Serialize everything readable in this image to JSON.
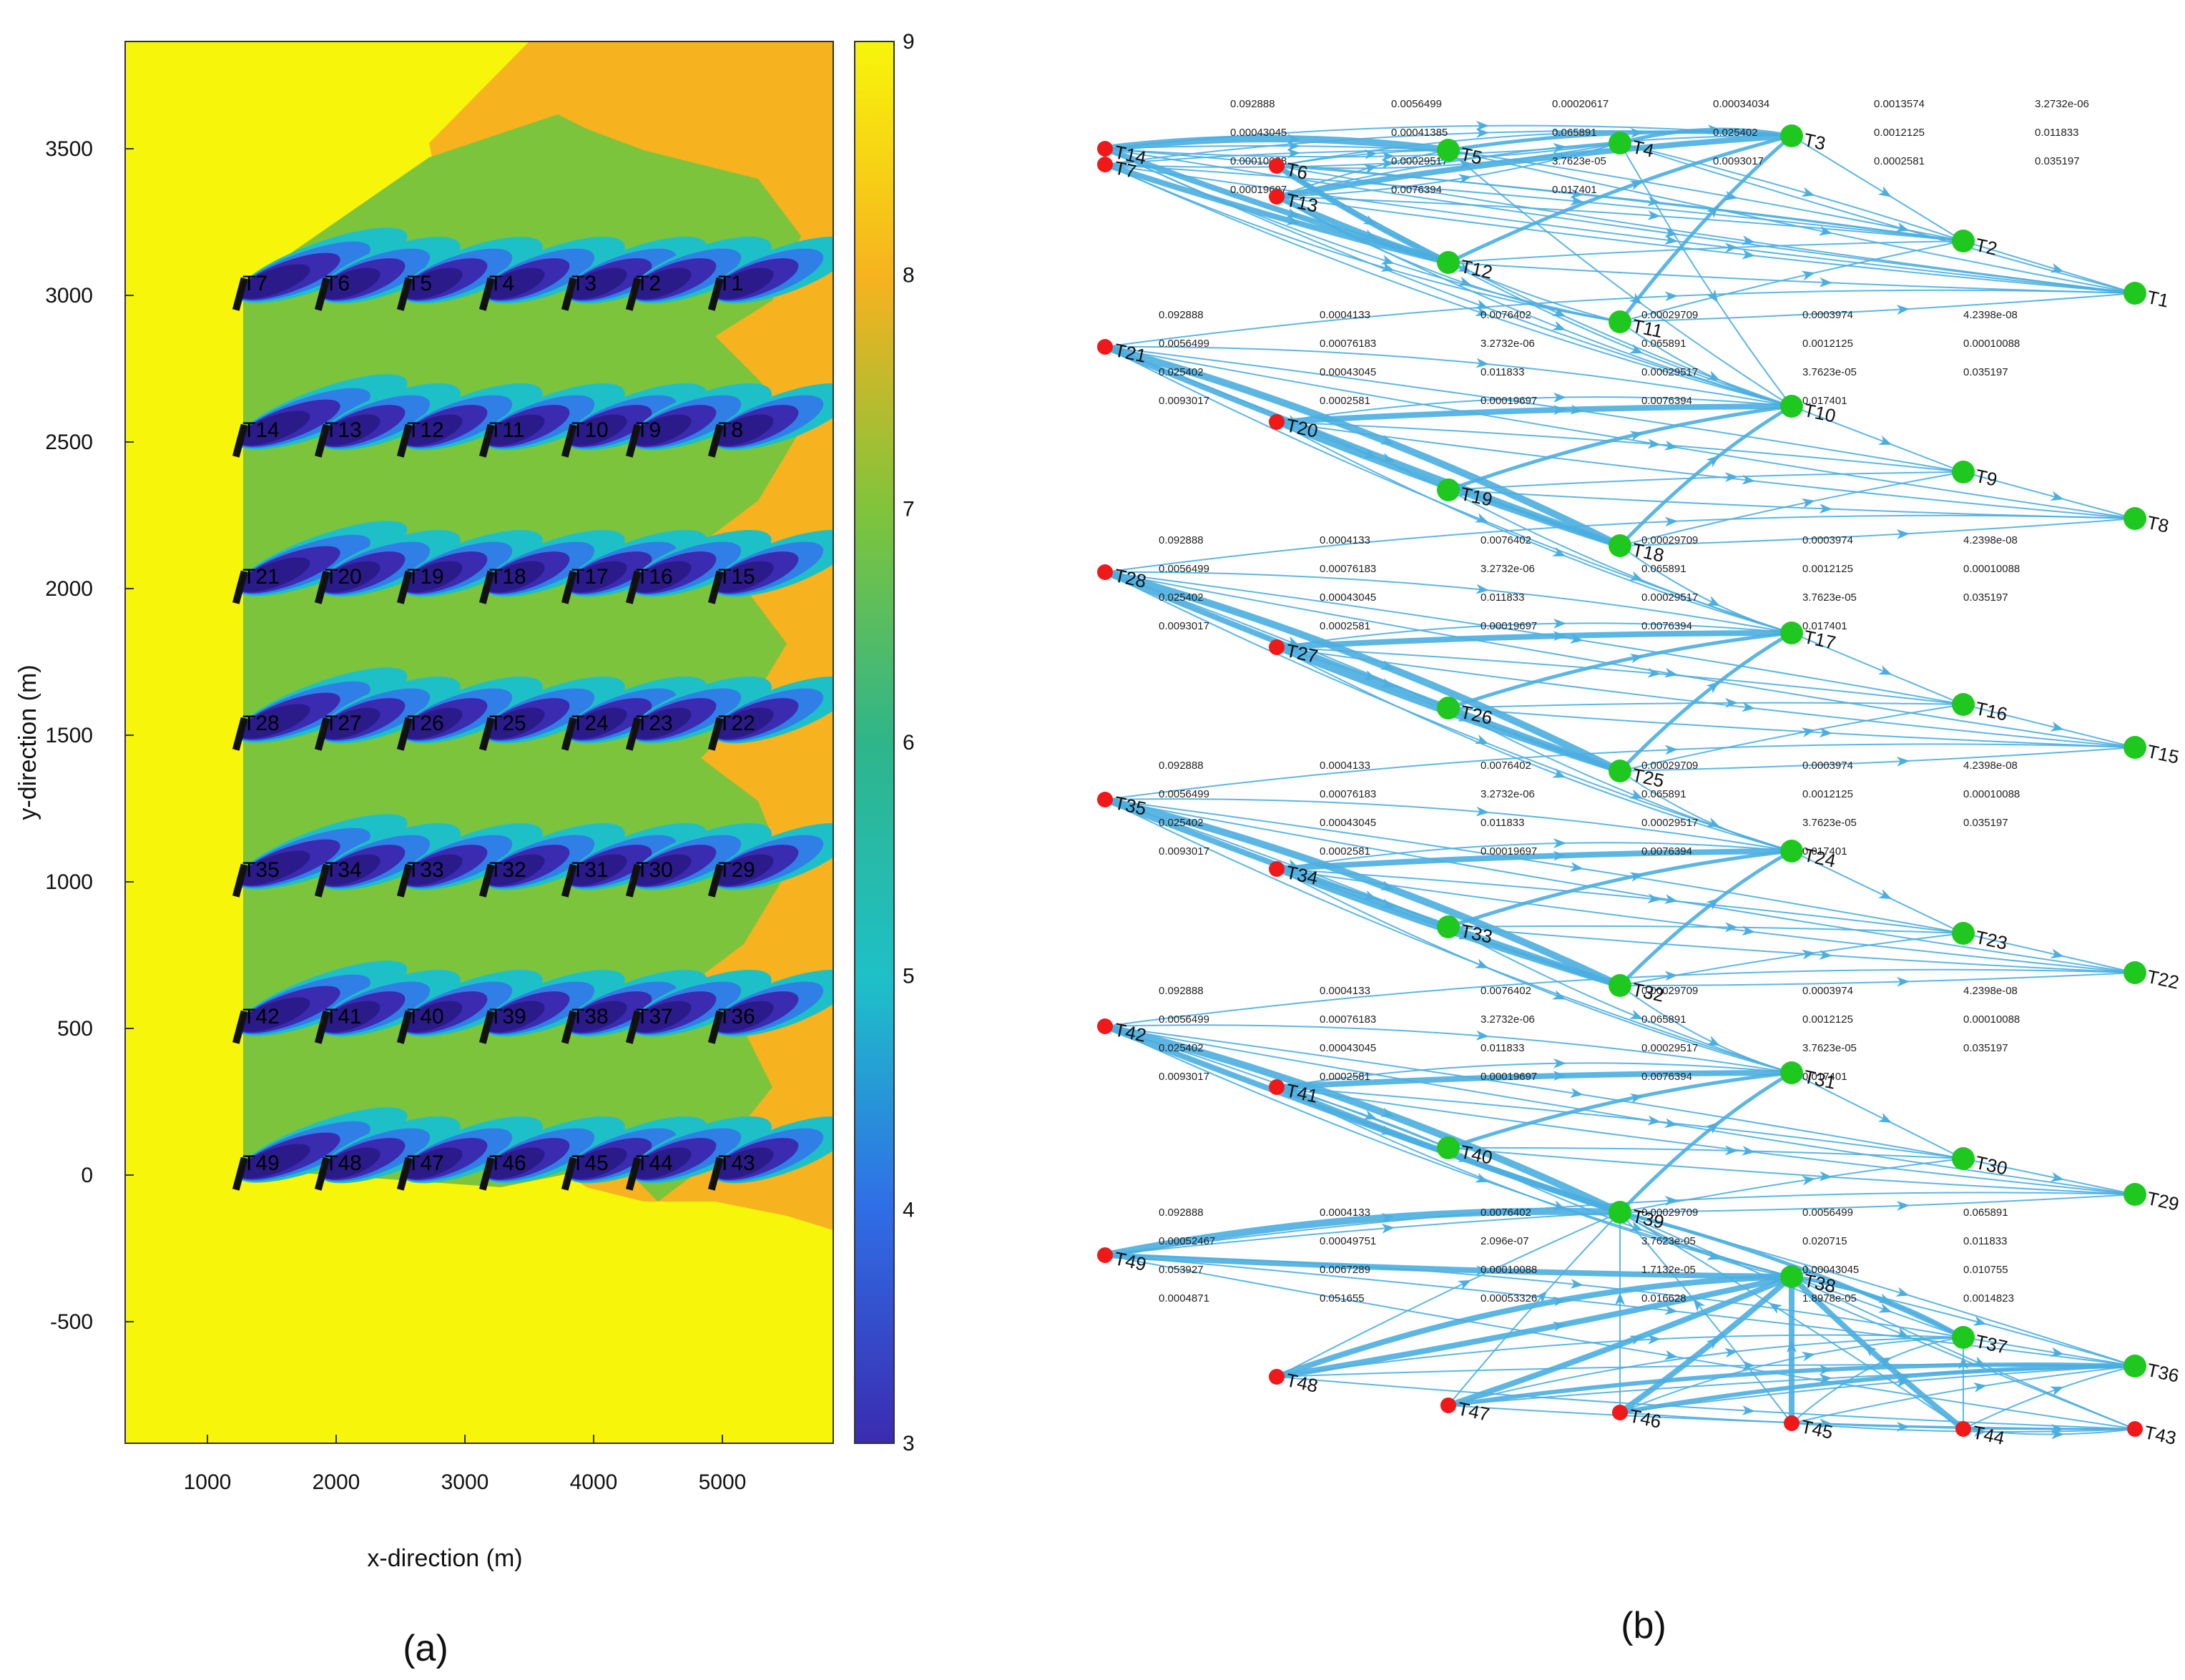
{
  "panels": {
    "a": {
      "label": "(a)",
      "xlabel": "x-direction (m)",
      "ylabel": "y-direction (m)",
      "x_ticks": [
        "1000",
        "2000",
        "3000",
        "4000",
        "5000"
      ],
      "y_ticks": [
        "3500",
        "3000",
        "2500",
        "2000",
        "1500",
        "1000",
        "500",
        "0",
        "-500"
      ],
      "colorbar_ticks": [
        "9",
        "8",
        "7",
        "6",
        "5",
        "4",
        "3"
      ],
      "colors": {
        "free_stream": "#f7f50a",
        "wake_outer": "#f6b21f",
        "wake_mid": "#7cc43c",
        "wake_green2": "#2fb58a",
        "wake_teal": "#1ec0c8",
        "wake_blue": "#2f7fe6",
        "wake_core": "#3a2bb0",
        "wake_core_dark": "#2b1a8a"
      },
      "turbines": [
        [
          "T7",
          "T6",
          "T5",
          "T4",
          "T3",
          "T2",
          "T1"
        ],
        [
          "T14",
          "T13",
          "T12",
          "T11",
          "T10",
          "T9",
          "T8"
        ],
        [
          "T21",
          "T20",
          "T19",
          "T18",
          "T17",
          "T16",
          "T15"
        ],
        [
          "T28",
          "T27",
          "T26",
          "T25",
          "T24",
          "T23",
          "T22"
        ],
        [
          "T35",
          "T34",
          "T33",
          "T32",
          "T31",
          "T30",
          "T29"
        ],
        [
          "T42",
          "T41",
          "T40",
          "T39",
          "T38",
          "T37",
          "T36"
        ],
        [
          "T49",
          "T48",
          "T47",
          "T46",
          "T45",
          "T44",
          "T43"
        ]
      ]
    },
    "b": {
      "label": "(b)",
      "colors": {
        "edge": "#4aaee0",
        "root_node": "#f01818",
        "green_node": "#1ec81e"
      },
      "nodes": [
        {
          "id": "T7",
          "color": "red"
        },
        {
          "id": "T14",
          "color": "red"
        },
        {
          "id": "T6",
          "color": "red"
        },
        {
          "id": "T13",
          "color": "red"
        },
        {
          "id": "T5",
          "color": "green"
        },
        {
          "id": "T4",
          "color": "green"
        },
        {
          "id": "T3",
          "color": "green"
        },
        {
          "id": "T12",
          "color": "green"
        },
        {
          "id": "T2",
          "color": "green"
        },
        {
          "id": "T11",
          "color": "green"
        },
        {
          "id": "T1",
          "color": "green"
        },
        {
          "id": "T21",
          "color": "red"
        },
        {
          "id": "T20",
          "color": "red"
        },
        {
          "id": "T10",
          "color": "green"
        },
        {
          "id": "T19",
          "color": "green"
        },
        {
          "id": "T9",
          "color": "green"
        },
        {
          "id": "T8",
          "color": "green"
        },
        {
          "id": "T28",
          "color": "red"
        },
        {
          "id": "T18",
          "color": "green"
        },
        {
          "id": "T27",
          "color": "red"
        },
        {
          "id": "T17",
          "color": "green"
        },
        {
          "id": "T26",
          "color": "green"
        },
        {
          "id": "T16",
          "color": "green"
        },
        {
          "id": "T15",
          "color": "green"
        },
        {
          "id": "T35",
          "color": "red"
        },
        {
          "id": "T25",
          "color": "green"
        },
        {
          "id": "T34",
          "color": "red"
        },
        {
          "id": "T24",
          "color": "green"
        },
        {
          "id": "T33",
          "color": "green"
        },
        {
          "id": "T23",
          "color": "green"
        },
        {
          "id": "T22",
          "color": "green"
        },
        {
          "id": "T42",
          "color": "red"
        },
        {
          "id": "T32",
          "color": "green"
        },
        {
          "id": "T41",
          "color": "red"
        },
        {
          "id": "T31",
          "color": "green"
        },
        {
          "id": "T40",
          "color": "green"
        },
        {
          "id": "T30",
          "color": "green"
        },
        {
          "id": "T29",
          "color": "green"
        },
        {
          "id": "T49",
          "color": "red"
        },
        {
          "id": "T39",
          "color": "green"
        },
        {
          "id": "T38",
          "color": "green"
        },
        {
          "id": "T48",
          "color": "red"
        },
        {
          "id": "T37",
          "color": "green"
        },
        {
          "id": "T36",
          "color": "green"
        },
        {
          "id": "T47",
          "color": "red"
        },
        {
          "id": "T46",
          "color": "red"
        },
        {
          "id": "T45",
          "color": "red"
        },
        {
          "id": "T44",
          "color": "red"
        },
        {
          "id": "T43",
          "color": "red"
        }
      ],
      "edge_labels": {
        "block_top": [
          "0.092888",
          "0.0056499",
          "0.00020617",
          "0.00034034",
          "0.0013574",
          "3.2732e-06",
          "0.00043045",
          "0.00041385",
          "0.065891",
          "0.025402",
          "0.0012125",
          "0.011833",
          "0.00010088",
          "0.00029517",
          "3.7623e-05",
          "0.0093017",
          "0.0002581",
          "0.035197",
          "0.00019697",
          "0.0076394",
          "0.017401"
        ],
        "block_mid": [
          "0.092888",
          "0.0004133",
          "0.0076402",
          "0.00029709",
          "0.0003974",
          "4.2398e-08",
          "0.0056499",
          "0.00076183",
          "3.2732e-06",
          "0.065891",
          "0.0012125",
          "0.00010088",
          "0.025402",
          "0.00043045",
          "0.011833",
          "0.00029517",
          "3.7623e-05",
          "0.035197",
          "0.0093017",
          "0.0002581",
          "0.00019697",
          "0.0076394",
          "0.017401"
        ],
        "block_bottom": [
          "0.092888",
          "0.0004133",
          "0.0076402",
          "0.00029709",
          "0.0056499",
          "0.065891",
          "0.00052467",
          "0.00049751",
          "2.096e-07",
          "3.7623e-05",
          "0.020715",
          "0.011833",
          "0.053927",
          "0.0067289",
          "0.00010088",
          "1.7132e-05",
          "0.00043045",
          "0.010755",
          "0.0004871",
          "0.051655",
          "0.00053326",
          "0.016628",
          "1.8978e-05",
          "0.0014823"
        ]
      }
    }
  }
}
